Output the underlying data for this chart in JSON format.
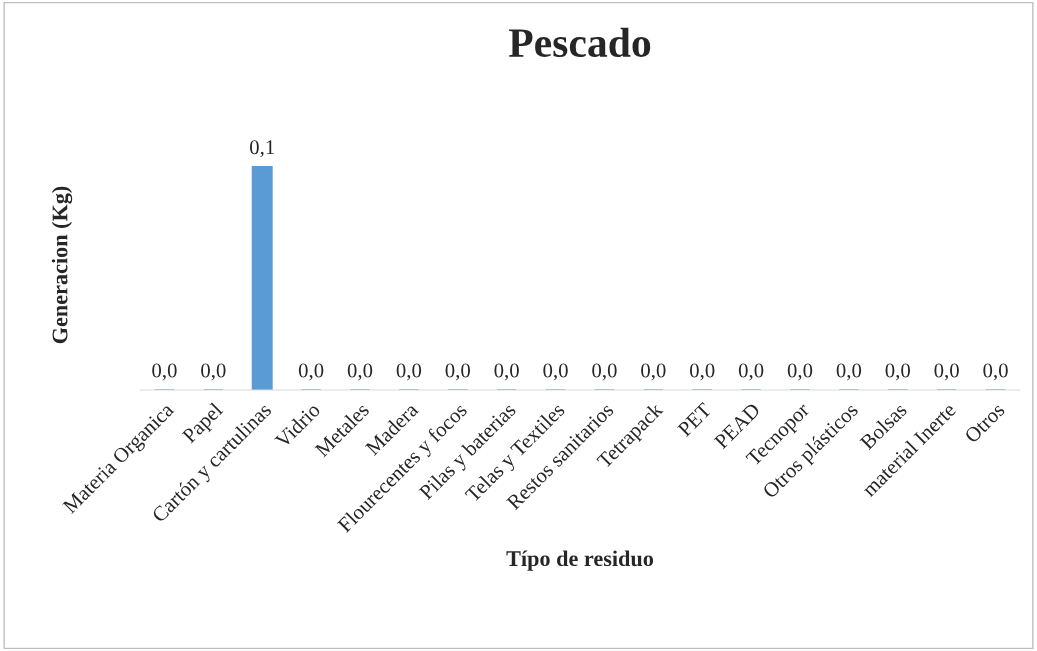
{
  "chart_data": {
    "type": "bar",
    "title": "Pescado",
    "xlabel": "Típo de residuo",
    "ylabel": "Generacion (Kg)",
    "categories": [
      "Materia Organica",
      "Papel",
      "Cartón y cartulinas",
      "Vidrio",
      "Metales",
      "Madera",
      "Flourecentes y focos",
      "Pilas y baterias",
      "Telas y Textiles",
      "Restos sanitarios",
      "Tetrapack",
      "PET",
      "PEAD",
      "Tecnopor",
      "Otros plásticos",
      "Bolsas",
      "material Inerte",
      "Otros"
    ],
    "values": [
      0,
      0,
      0.1,
      0,
      0,
      0,
      0,
      0,
      0,
      0,
      0,
      0,
      0,
      0,
      0,
      0,
      0,
      0
    ],
    "value_labels": [
      "0,0",
      "0,0",
      "0,1",
      "0,0",
      "0,0",
      "0,0",
      "0,0",
      "0,0",
      "0,0",
      "0,0",
      "0,0",
      "0,0",
      "0,0",
      "0,0",
      "0,0",
      "0,0",
      "0,0",
      "0,0"
    ],
    "color": "#5b9bd5",
    "grid": false,
    "legend": false
  }
}
